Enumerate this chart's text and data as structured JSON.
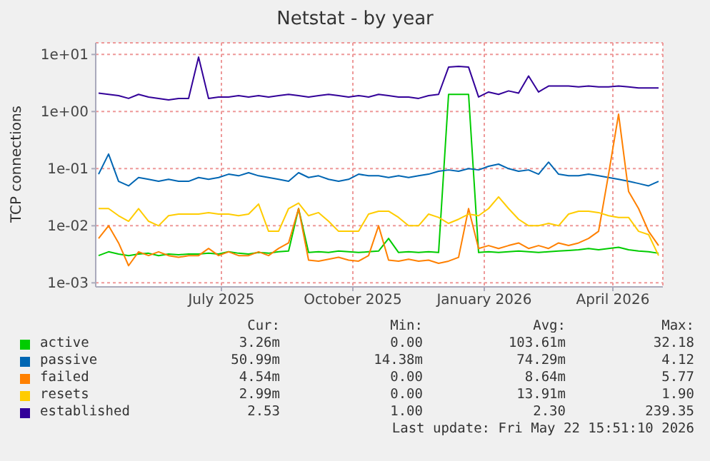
{
  "chart_data": {
    "type": "line",
    "title": "Netstat - by year",
    "ylabel": "TCP connections",
    "log": "y",
    "grid": true,
    "legend": "bottom",
    "xlim": [
      "2025-04-18",
      "2026-05-20"
    ],
    "xticks": [
      {
        "value": "2025-07-15",
        "label": "July 2025"
      },
      {
        "value": "2025-10-15",
        "label": "October 2025"
      },
      {
        "value": "2026-01-15",
        "label": "January 2026"
      },
      {
        "value": "2026-04-15",
        "label": "April 2026"
      }
    ],
    "ylim": [
      0.00085,
      16
    ],
    "yticks": [
      {
        "value": 0.001,
        "label": "1e-03"
      },
      {
        "value": 0.01,
        "label": "1e-02"
      },
      {
        "value": 0.1,
        "label": "1e-01"
      },
      {
        "value": 1,
        "label": "1e+00"
      },
      {
        "value": 10,
        "label": "1e+01"
      }
    ],
    "x": [
      "2025-04-20",
      "2025-04-27",
      "2025-05-04",
      "2025-05-11",
      "2025-05-18",
      "2025-05-25",
      "2025-06-01",
      "2025-06-08",
      "2025-06-15",
      "2025-06-22",
      "2025-06-29",
      "2025-07-06",
      "2025-07-13",
      "2025-07-20",
      "2025-07-27",
      "2025-08-03",
      "2025-08-10",
      "2025-08-17",
      "2025-08-24",
      "2025-08-31",
      "2025-09-07",
      "2025-09-14",
      "2025-09-21",
      "2025-09-28",
      "2025-10-05",
      "2025-10-12",
      "2025-10-19",
      "2025-10-26",
      "2025-11-02",
      "2025-11-09",
      "2025-11-16",
      "2025-11-23",
      "2025-11-30",
      "2025-12-07",
      "2025-12-14",
      "2025-12-21",
      "2025-12-28",
      "2026-01-04",
      "2026-01-11",
      "2026-01-18",
      "2026-01-25",
      "2026-02-01",
      "2026-02-08",
      "2026-02-15",
      "2026-02-22",
      "2026-03-01",
      "2026-03-08",
      "2026-03-15",
      "2026-03-22",
      "2026-03-29",
      "2026-04-05",
      "2026-04-12",
      "2026-04-19",
      "2026-04-26",
      "2026-05-03",
      "2026-05-10",
      "2026-05-17"
    ],
    "series": [
      {
        "name": "active",
        "color": "#00cc00",
        "values": [
          0.003,
          0.0035,
          0.0032,
          0.003,
          0.0032,
          0.0033,
          0.003,
          0.0032,
          0.0031,
          0.0032,
          0.0032,
          0.0033,
          0.0032,
          0.0035,
          0.0033,
          0.0032,
          0.0034,
          0.0033,
          0.0035,
          0.0036,
          0.02,
          0.0034,
          0.0035,
          0.0034,
          0.0036,
          0.0035,
          0.0034,
          0.0035,
          0.0036,
          0.006,
          0.0034,
          0.0035,
          0.0034,
          0.0035,
          0.0034,
          2.0,
          2.0,
          2.0,
          0.0034,
          0.0035,
          0.0034,
          0.0035,
          0.0036,
          0.0035,
          0.0034,
          0.0035,
          0.0036,
          0.0037,
          0.0038,
          0.004,
          0.0038,
          0.004,
          0.0042,
          0.0038,
          0.0036,
          0.0035,
          0.0033
        ]
      },
      {
        "name": "passive",
        "color": "#0066b3",
        "values": [
          0.08,
          0.18,
          0.06,
          0.05,
          0.07,
          0.065,
          0.06,
          0.065,
          0.06,
          0.06,
          0.07,
          0.065,
          0.07,
          0.08,
          0.075,
          0.085,
          0.075,
          0.07,
          0.065,
          0.06,
          0.085,
          0.07,
          0.075,
          0.065,
          0.06,
          0.065,
          0.08,
          0.075,
          0.075,
          0.07,
          0.075,
          0.07,
          0.075,
          0.08,
          0.09,
          0.095,
          0.09,
          0.1,
          0.095,
          0.11,
          0.12,
          0.1,
          0.09,
          0.095,
          0.08,
          0.13,
          0.08,
          0.075,
          0.075,
          0.08,
          0.075,
          0.07,
          0.065,
          0.06,
          0.055,
          0.05,
          0.06
        ]
      },
      {
        "name": "failed",
        "color": "#ff8000",
        "values": [
          0.006,
          0.01,
          0.005,
          0.002,
          0.0035,
          0.003,
          0.0035,
          0.003,
          0.0028,
          0.003,
          0.003,
          0.004,
          0.003,
          0.0035,
          0.003,
          0.003,
          0.0035,
          0.003,
          0.004,
          0.005,
          0.02,
          0.0025,
          0.0024,
          0.0026,
          0.0028,
          0.0025,
          0.0024,
          0.003,
          0.01,
          0.0025,
          0.0024,
          0.0026,
          0.0024,
          0.0025,
          0.0022,
          0.0024,
          0.0028,
          0.02,
          0.004,
          0.0045,
          0.004,
          0.0045,
          0.005,
          0.004,
          0.0045,
          0.004,
          0.005,
          0.0045,
          0.005,
          0.006,
          0.008,
          0.08,
          0.9,
          0.04,
          0.02,
          0.008,
          0.0045
        ]
      },
      {
        "name": "resets",
        "color": "#ffcc00",
        "values": [
          0.02,
          0.02,
          0.015,
          0.012,
          0.02,
          0.012,
          0.01,
          0.015,
          0.016,
          0.016,
          0.016,
          0.017,
          0.016,
          0.016,
          0.015,
          0.016,
          0.024,
          0.008,
          0.008,
          0.02,
          0.025,
          0.015,
          0.017,
          0.012,
          0.008,
          0.008,
          0.008,
          0.016,
          0.018,
          0.018,
          0.014,
          0.01,
          0.01,
          0.016,
          0.014,
          0.011,
          0.013,
          0.016,
          0.015,
          0.02,
          0.032,
          0.02,
          0.013,
          0.01,
          0.01,
          0.011,
          0.01,
          0.016,
          0.018,
          0.018,
          0.017,
          0.015,
          0.014,
          0.014,
          0.008,
          0.007,
          0.003
        ]
      },
      {
        "name": "established",
        "color": "#330099",
        "values": [
          2.1,
          2.0,
          1.9,
          1.7,
          2.0,
          1.8,
          1.7,
          1.6,
          1.7,
          1.7,
          9,
          1.7,
          1.8,
          1.8,
          1.9,
          1.8,
          1.9,
          1.8,
          1.9,
          2.0,
          1.9,
          1.8,
          1.9,
          2.0,
          1.9,
          1.8,
          1.9,
          1.8,
          2.0,
          1.9,
          1.8,
          1.8,
          1.7,
          1.9,
          2.0,
          6.0,
          6.2,
          6.0,
          1.8,
          2.2,
          2.0,
          2.3,
          2.1,
          4.2,
          2.2,
          2.8,
          2.8,
          2.8,
          2.7,
          2.8,
          2.7,
          2.7,
          2.8,
          2.7,
          2.6,
          2.6,
          2.6
        ]
      }
    ],
    "annotations": [
      "Cur:",
      "Min:",
      "Avg:",
      "Max:",
      "3.26m",
      "0.00",
      "103.61m",
      "32.18",
      "50.99m",
      "14.38m",
      "74.29m",
      "4.12",
      "4.54m",
      "0.00",
      "8.64m",
      "5.77",
      "2.99m",
      "0.00",
      "13.91m",
      "1.90",
      "2.53",
      "1.00",
      "2.30",
      "239.35",
      "Last update: Fri May 22 15:51:10 2026"
    ]
  }
}
